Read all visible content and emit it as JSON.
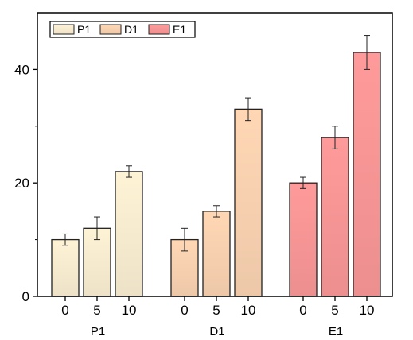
{
  "chart_data": {
    "type": "bar",
    "title": "",
    "xlabel": "",
    "ylabel": "",
    "ylim": [
      0,
      50
    ],
    "y_ticks": [
      0,
      20,
      40
    ],
    "grid": false,
    "legend_position": "top-left",
    "groups": [
      {
        "name": "P1",
        "color": "#FFF3D6",
        "categories": [
          "0",
          "5",
          "10"
        ],
        "values": [
          10,
          12,
          22
        ],
        "errors": [
          1,
          2,
          1
        ]
      },
      {
        "name": "D1",
        "color": "#FFD7B5",
        "categories": [
          "0",
          "5",
          "10"
        ],
        "values": [
          10,
          15,
          33
        ],
        "errors": [
          2,
          1,
          2
        ]
      },
      {
        "name": "E1",
        "color": "#FF9A9A",
        "categories": [
          "0",
          "5",
          "10"
        ],
        "values": [
          20,
          28,
          43
        ],
        "errors": [
          1,
          2,
          3
        ]
      }
    ],
    "legend": [
      "P1",
      "D1",
      "E1"
    ]
  }
}
